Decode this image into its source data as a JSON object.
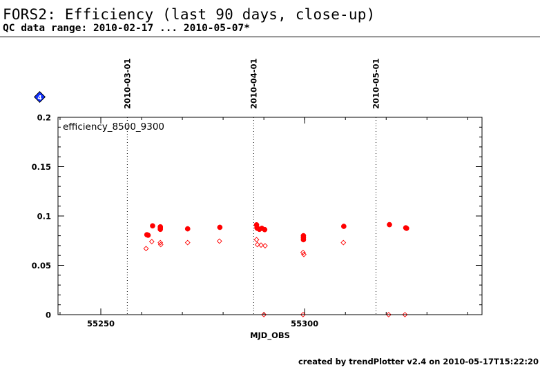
{
  "header": {
    "title": "FORS2: Efficiency (last 90 days, close-up)",
    "subtitle": "QC data range: 2010-02-17 ... 2010-05-07*"
  },
  "badge": {
    "label": "4",
    "color": "#1030ff",
    "icon": "diamond-badge-icon"
  },
  "footer": {
    "credit": "created by trendPlotter v2.4 on 2010-05-17T15:22:20"
  },
  "chart_data": {
    "type": "scatter",
    "title": "",
    "panel_label": "efficiency_8500_9300",
    "xlabel": "MJD_OBS",
    "ylabel": "",
    "xlim": [
      55239.5,
      55343.5
    ],
    "ylim": [
      0,
      0.2
    ],
    "x_ticks": [
      {
        "value": 55250,
        "label": "55250"
      },
      {
        "value": 55300,
        "label": "55300"
      }
    ],
    "x_minor_step": 10,
    "y_ticks": [
      {
        "value": 0,
        "label": "0"
      },
      {
        "value": 0.05,
        "label": "0.05"
      },
      {
        "value": 0.1,
        "label": "0.1"
      },
      {
        "value": 0.15,
        "label": "0.15"
      },
      {
        "value": 0.2,
        "label": "0.2"
      }
    ],
    "y_minor_step": 0.01,
    "date_markers": [
      {
        "x": 55256.5,
        "label": "2010-03-01"
      },
      {
        "x": 55287.5,
        "label": "2010-04-01"
      },
      {
        "x": 55317.5,
        "label": "2010-05-01"
      }
    ],
    "grid": false,
    "colors": {
      "series": "#ff0000",
      "axes": "#000000",
      "markers": "#000000"
    },
    "series": [
      {
        "marker": "filled-circle",
        "points": [
          {
            "x": 55261.3,
            "y": 0.081
          },
          {
            "x": 55261.6,
            "y": 0.0805
          },
          {
            "x": 55262.7,
            "y": 0.09
          },
          {
            "x": 55264.6,
            "y": 0.089
          },
          {
            "x": 55264.6,
            "y": 0.088
          },
          {
            "x": 55264.6,
            "y": 0.0865
          },
          {
            "x": 55271.3,
            "y": 0.087
          },
          {
            "x": 55279.2,
            "y": 0.0885
          },
          {
            "x": 55288.2,
            "y": 0.091
          },
          {
            "x": 55288.3,
            "y": 0.088
          },
          {
            "x": 55288.4,
            "y": 0.0875
          },
          {
            "x": 55288.9,
            "y": 0.0865
          },
          {
            "x": 55289.5,
            "y": 0.0875
          },
          {
            "x": 55290.2,
            "y": 0.0862
          },
          {
            "x": 55299.7,
            "y": 0.08
          },
          {
            "x": 55299.7,
            "y": 0.078
          },
          {
            "x": 55299.7,
            "y": 0.076
          },
          {
            "x": 55309.6,
            "y": 0.0895
          },
          {
            "x": 55320.8,
            "y": 0.0912
          },
          {
            "x": 55324.8,
            "y": 0.088
          },
          {
            "x": 55325.0,
            "y": 0.0875
          }
        ]
      },
      {
        "marker": "open-diamond",
        "points": [
          {
            "x": 55261.1,
            "y": 0.067
          },
          {
            "x": 55262.5,
            "y": 0.074
          },
          {
            "x": 55264.6,
            "y": 0.073
          },
          {
            "x": 55264.7,
            "y": 0.071
          },
          {
            "x": 55271.3,
            "y": 0.073
          },
          {
            "x": 55279.1,
            "y": 0.0745
          },
          {
            "x": 55288.2,
            "y": 0.076
          },
          {
            "x": 55288.4,
            "y": 0.071
          },
          {
            "x": 55289.3,
            "y": 0.0705
          },
          {
            "x": 55290.3,
            "y": 0.0698
          },
          {
            "x": 55299.6,
            "y": 0.063
          },
          {
            "x": 55299.8,
            "y": 0.061
          },
          {
            "x": 55309.5,
            "y": 0.073
          },
          {
            "x": 55290.0,
            "y": 0.0
          },
          {
            "x": 55299.6,
            "y": 0.0
          },
          {
            "x": 55320.6,
            "y": 0.0
          },
          {
            "x": 55324.6,
            "y": 0.0
          }
        ]
      }
    ]
  }
}
